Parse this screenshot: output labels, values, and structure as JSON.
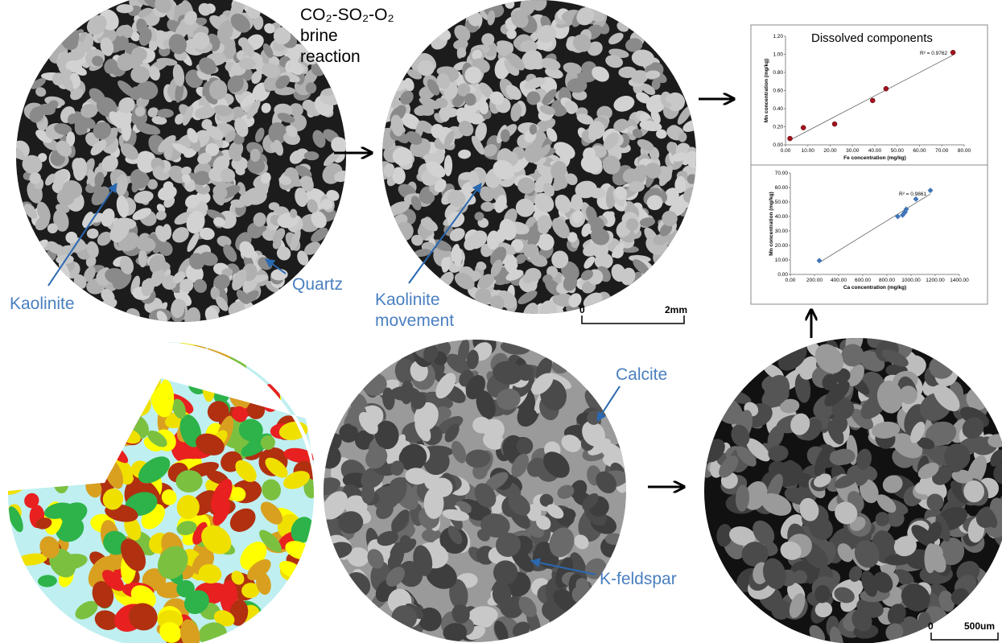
{
  "annotations": {
    "reaction": "CO₂-SO₂-O₂ brine reaction",
    "kaolinite": "Kaolinite",
    "quartz": "Quartz",
    "kaolinite_movement": "Kaolinite movement",
    "calcite": "Calcite",
    "k_feldspar": "K-feldspar",
    "dissolved": "Dissolved components",
    "scale_top": {
      "start": "0",
      "end": "2mm"
    },
    "scale_bottom": {
      "start": "0",
      "end": "500um"
    }
  },
  "chart_data": [
    {
      "type": "scatter",
      "x_label": "Fe concentration (mg/kg)",
      "y_label": "Mn concentration (mg/kg)",
      "annotation": "R² = 0.9762",
      "color": "#a0141e",
      "marker": "circle",
      "x": [
        2,
        8,
        22,
        39,
        45,
        75
      ],
      "values": [
        0.07,
        0.19,
        0.23,
        0.49,
        0.62,
        1.02
      ],
      "xlim": [
        0,
        80
      ],
      "ylim": [
        0,
        1.2
      ],
      "xticks": [
        {
          "value": 0,
          "label": "0.00"
        },
        {
          "value": 10,
          "label": "10.00"
        },
        {
          "value": 20,
          "label": "20.00"
        },
        {
          "value": 30,
          "label": "30.00"
        },
        {
          "value": 40,
          "label": "40.00"
        },
        {
          "value": 50,
          "label": "50.00"
        },
        {
          "value": 60,
          "label": "60.00"
        },
        {
          "value": 70,
          "label": "70.00"
        },
        {
          "value": 80,
          "label": "80.00"
        }
      ],
      "yticks": [
        {
          "value": 0,
          "label": "0.00"
        },
        {
          "value": 0.2,
          "label": "0.20"
        },
        {
          "value": 0.4,
          "label": "0.40"
        },
        {
          "value": 0.6,
          "label": "0.60"
        },
        {
          "value": 0.8,
          "label": "0.80"
        },
        {
          "value": 1,
          "label": "1.00"
        },
        {
          "value": 1.2,
          "label": "1.20"
        }
      ],
      "trendline": true
    },
    {
      "type": "scatter",
      "x_label": "Ca concentration (mg/kg)",
      "y_label": "Mn concentration (mg/kg)",
      "annotation": "R² = 0.9861",
      "color": "#3f75b8",
      "marker": "diamond",
      "x": [
        240,
        890,
        930,
        950,
        960,
        1040,
        1160
      ],
      "values": [
        9.5,
        40,
        41,
        43,
        45,
        52,
        58
      ],
      "xlim": [
        0,
        1400
      ],
      "ylim": [
        0,
        70
      ],
      "xticks": [
        {
          "value": 0,
          "label": "0.00"
        },
        {
          "value": 200,
          "label": "200.00"
        },
        {
          "value": 400,
          "label": "400.00"
        },
        {
          "value": 600,
          "label": "600.00"
        },
        {
          "value": 800,
          "label": "800.00"
        },
        {
          "value": 1000,
          "label": "1000.00"
        },
        {
          "value": 1200,
          "label": "1200.00"
        },
        {
          "value": 1400,
          "label": "1400.00"
        }
      ],
      "yticks": [
        {
          "value": 0,
          "label": "0.00"
        },
        {
          "value": 10,
          "label": "10.00"
        },
        {
          "value": 20,
          "label": "20.00"
        },
        {
          "value": 30,
          "label": "30.00"
        },
        {
          "value": 40,
          "label": "40.00"
        },
        {
          "value": 50,
          "label": "50.00"
        },
        {
          "value": 60,
          "label": "60.00"
        },
        {
          "value": 70,
          "label": "70.00"
        }
      ],
      "trendline": true
    }
  ]
}
